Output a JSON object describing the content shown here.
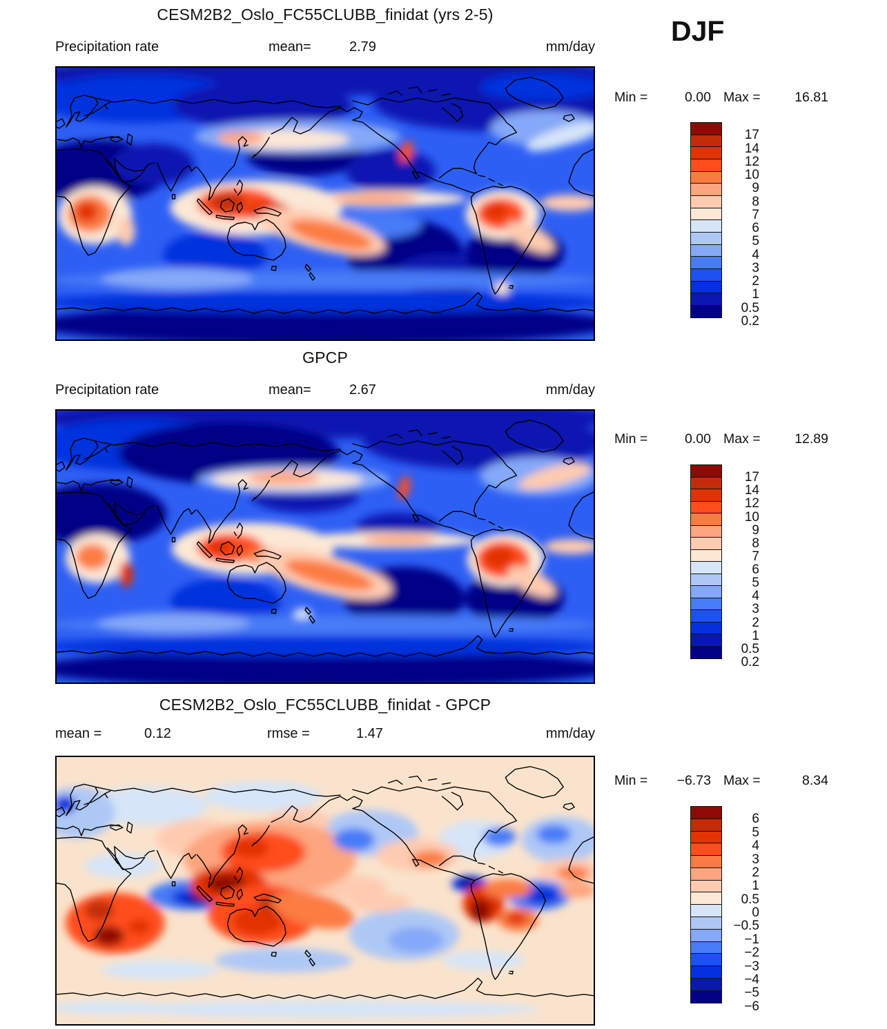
{
  "figure": {
    "season_label": "DJF"
  },
  "panels": [
    {
      "title": "CESM2B2_Oslo_FC55CLUBB_finidat (yrs 2-5)",
      "left_label": "Precipitation rate",
      "stats": [
        {
          "label": "mean=",
          "value": "2.79"
        }
      ],
      "units_label": "mm/day",
      "minmax": {
        "min_label": "Min =",
        "min_value": "0.00",
        "max_label": "Max =",
        "max_value": "16.81"
      },
      "colorbar": {
        "ticks": [
          "17",
          "14",
          "12",
          "10",
          "9",
          "8",
          "7",
          "6",
          "5",
          "4",
          "3",
          "2",
          "1",
          "0.5",
          "0.2"
        ],
        "colors": [
          "#8F0A06",
          "#C22D09",
          "#E23304",
          "#FF4D1C",
          "#FC7B43",
          "#FDA57E",
          "#FECBB0",
          "#FCE8D5",
          "#D6E5F8",
          "#AEC8F6",
          "#85A8F8",
          "#477BF7",
          "#1C52F2",
          "#0430DD",
          "#0818B0",
          "#030287"
        ]
      }
    },
    {
      "title": "GPCP",
      "left_label": "Precipitation rate",
      "stats": [
        {
          "label": "mean=",
          "value": "2.67"
        }
      ],
      "units_label": "mm/day",
      "minmax": {
        "min_label": "Min =",
        "min_value": "0.00",
        "max_label": "Max =",
        "max_value": "12.89"
      },
      "colorbar": {
        "ticks": [
          "17",
          "14",
          "12",
          "10",
          "9",
          "8",
          "7",
          "6",
          "5",
          "4",
          "3",
          "2",
          "1",
          "0.5",
          "0.2"
        ],
        "colors": [
          "#8F0A06",
          "#C22D09",
          "#E23304",
          "#FF4D1C",
          "#FC7B43",
          "#FDA57E",
          "#FECBB0",
          "#FCE8D5",
          "#D6E5F8",
          "#AEC8F6",
          "#85A8F8",
          "#477BF7",
          "#1C52F2",
          "#0430DD",
          "#0818B0",
          "#030287"
        ]
      }
    },
    {
      "title": "CESM2B2_Oslo_FC55CLUBB_finidat - GPCP",
      "stats": [
        {
          "label": "mean =",
          "value": "0.12"
        },
        {
          "label": "rmse =",
          "value": "1.47"
        }
      ],
      "units_label": "mm/day",
      "minmax": {
        "min_label": "Min =",
        "min_value": "−6.73",
        "max_label": "Max =",
        "max_value": "8.34"
      },
      "colorbar": {
        "ticks": [
          "6",
          "5",
          "4",
          "3",
          "2",
          "1",
          "0.5",
          "0",
          "−0.5",
          "−1",
          "−2",
          "−3",
          "−4",
          "−5",
          "−6"
        ],
        "colors": [
          "#8F0A06",
          "#C22D09",
          "#E23304",
          "#FF4D1C",
          "#FC7B43",
          "#FDA57E",
          "#FECBB0",
          "#FCE8D5",
          "#D6E5F8",
          "#AEC8F6",
          "#85A8F8",
          "#477BF7",
          "#1C52F2",
          "#0430DD",
          "#0818B0",
          "#030287"
        ]
      }
    }
  ],
  "chart_data": [
    {
      "type": "heatmap",
      "subtype": "filled-contour global map (equirectangular, 0-360E)",
      "title": "CESM2B2_Oslo_FC55CLUBB_finidat (yrs 2-5)",
      "variable": "Precipitation rate",
      "units": "mm/day",
      "season": "DJF",
      "mean": 2.79,
      "min": 0.0,
      "max": 16.81,
      "contour_levels": [
        0.2,
        0.5,
        1,
        2,
        3,
        4,
        5,
        6,
        7,
        8,
        9,
        10,
        12,
        14,
        17
      ],
      "palette_low_to_high": [
        "#030287",
        "#0818B0",
        "#0430DD",
        "#1C52F2",
        "#477BF7",
        "#85A8F8",
        "#AEC8F6",
        "#D6E5F8",
        "#FCE8D5",
        "#FECBB0",
        "#FDA57E",
        "#FC7B43",
        "#FF4D1C",
        "#E23304",
        "#C22D09",
        "#8F0A06"
      ],
      "legend_position": "right"
    },
    {
      "type": "heatmap",
      "subtype": "filled-contour global map (equirectangular, 0-360E)",
      "title": "GPCP",
      "variable": "Precipitation rate",
      "units": "mm/day",
      "season": "DJF",
      "mean": 2.67,
      "min": 0.0,
      "max": 12.89,
      "contour_levels": [
        0.2,
        0.5,
        1,
        2,
        3,
        4,
        5,
        6,
        7,
        8,
        9,
        10,
        12,
        14,
        17
      ],
      "palette_low_to_high": [
        "#030287",
        "#0818B0",
        "#0430DD",
        "#1C52F2",
        "#477BF7",
        "#85A8F8",
        "#AEC8F6",
        "#D6E5F8",
        "#FCE8D5",
        "#FECBB0",
        "#FDA57E",
        "#FC7B43",
        "#FF4D1C",
        "#E23304",
        "#C22D09",
        "#8F0A06"
      ],
      "legend_position": "right"
    },
    {
      "type": "heatmap",
      "subtype": "filled-contour global difference map (equirectangular, 0-360E)",
      "title": "CESM2B2_Oslo_FC55CLUBB_finidat - GPCP",
      "variable": "Precipitation rate difference",
      "units": "mm/day",
      "season": "DJF",
      "mean": 0.12,
      "rmse": 1.47,
      "min": -6.73,
      "max": 8.34,
      "contour_levels": [
        -6,
        -5,
        -4,
        -3,
        -2,
        -1,
        -0.5,
        0,
        0.5,
        1,
        2,
        3,
        4,
        5,
        6
      ],
      "palette_low_to_high": [
        "#030287",
        "#0818B0",
        "#0430DD",
        "#1C52F2",
        "#477BF7",
        "#85A8F8",
        "#AEC8F6",
        "#D6E5F8",
        "#FCE8D5",
        "#FECBB0",
        "#FDA57E",
        "#FC7B43",
        "#FF4D1C",
        "#E23304",
        "#C22D09",
        "#8F0A06"
      ],
      "legend_position": "right"
    }
  ]
}
